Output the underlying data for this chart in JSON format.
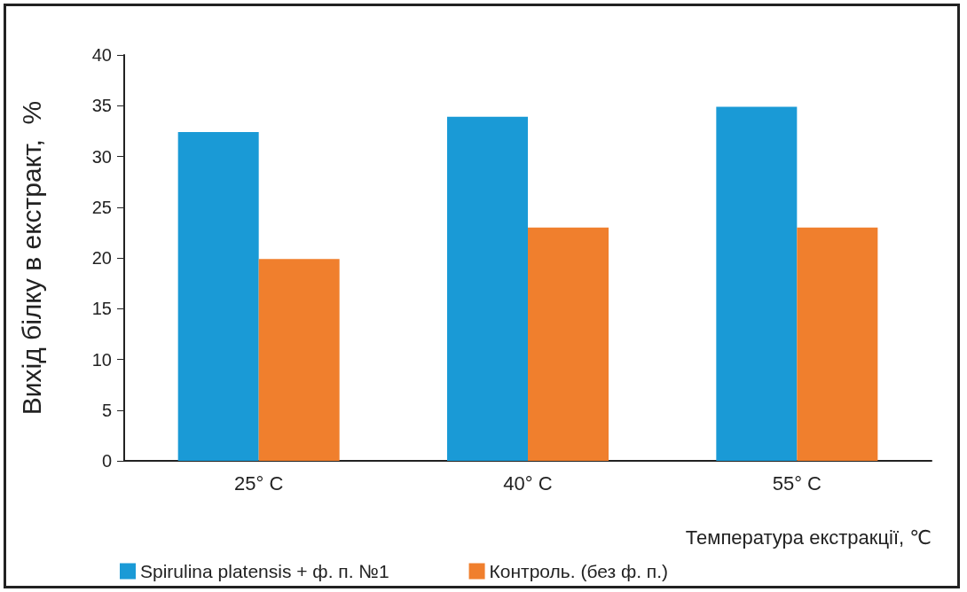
{
  "chart_data": {
    "type": "bar",
    "ylabel": "Вихід білку в екстракт,  %",
    "xlabel": "Температура екстракції, ℃",
    "categories": [
      "25° C",
      "40° C",
      "55° C"
    ],
    "series": [
      {
        "name": "Spirulina platensis + ф. п. №1",
        "color": "#1a9ad6",
        "values": [
          32.4,
          33.9,
          34.9
        ]
      },
      {
        "name": "Контроль. (без ф. п.)",
        "color": "#f07f2d",
        "values": [
          19.9,
          23.0,
          23.0
        ]
      }
    ],
    "ylim": [
      0,
      40
    ],
    "yticks": [
      0,
      5,
      10,
      15,
      20,
      25,
      30,
      35,
      40
    ],
    "grid": false,
    "legend": "bottom left"
  }
}
